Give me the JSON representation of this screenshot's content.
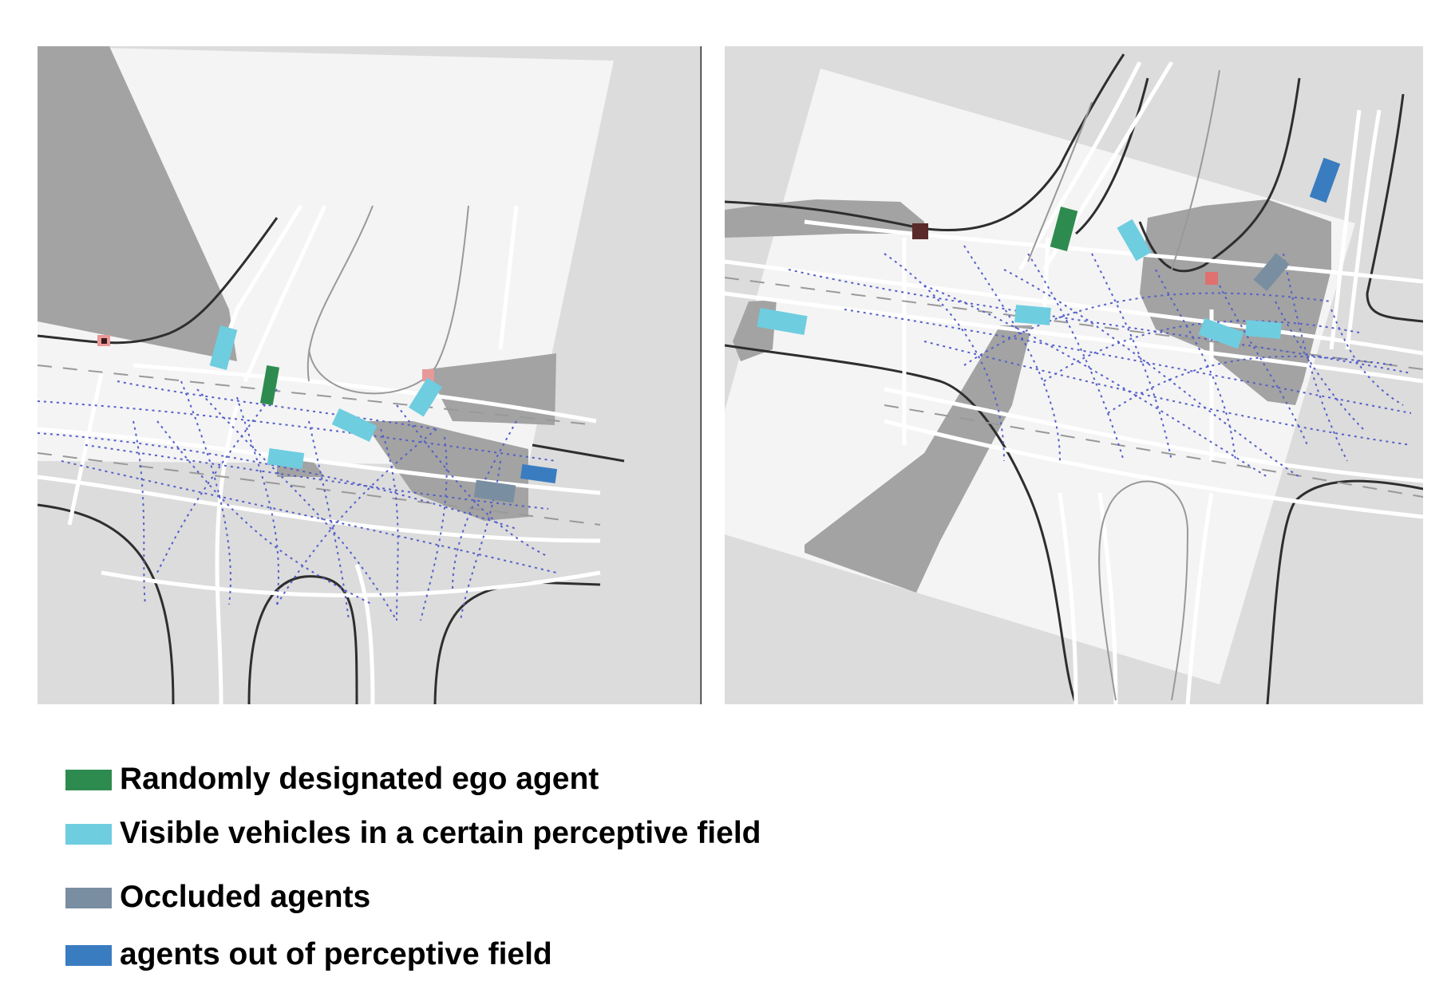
{
  "colors": {
    "background": "#dcdcdc",
    "perceptive_field": "#f4f4f4",
    "occlusion_shadow": "#a3a3a3",
    "lane_marking": "#ffffff",
    "road_edge": "#2e2e2e",
    "trajectory": "#5560c8",
    "traffic_light_red": "#e89898",
    "ego": "#2e8b50",
    "visible": "#6fcde0",
    "occluded": "#7a8ea1",
    "out_of_field": "#3a7cc0"
  },
  "legend": [
    {
      "label": "Randomly designated ego agent",
      "color": "#2e8b50"
    },
    {
      "label": "Visible vehicles in a certain perceptive field",
      "color": "#6fcde0"
    },
    {
      "label": "Occluded agents",
      "color": "#7a8ea1"
    },
    {
      "label": "agents out of perceptive field",
      "color": "#3a7cc0"
    }
  ]
}
